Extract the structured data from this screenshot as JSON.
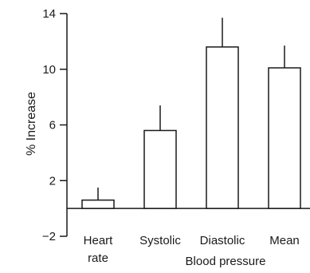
{
  "chart_data": {
    "type": "bar",
    "categories": [
      {
        "lines": [
          "Heart",
          "rate"
        ]
      },
      {
        "lines": [
          "Systolic"
        ]
      },
      {
        "lines": [
          "Diastolic"
        ]
      },
      {
        "lines": [
          "Mean"
        ]
      }
    ],
    "values": [
      0.6,
      5.6,
      11.6,
      10.1
    ],
    "error_upper": [
      1.5,
      7.4,
      13.7,
      11.7
    ],
    "ylabel": "% Increase",
    "group_label": "Blood pressure",
    "ylim": [
      -2,
      14
    ],
    "yticks": [
      14,
      10,
      6,
      2,
      -2
    ],
    "ytick_labels": [
      "14",
      "10",
      "6",
      "2",
      "−2"
    ],
    "bar_fill": "#ffffff",
    "bar_stroke": "#1a1a1a",
    "grid": false,
    "legend": "none"
  }
}
